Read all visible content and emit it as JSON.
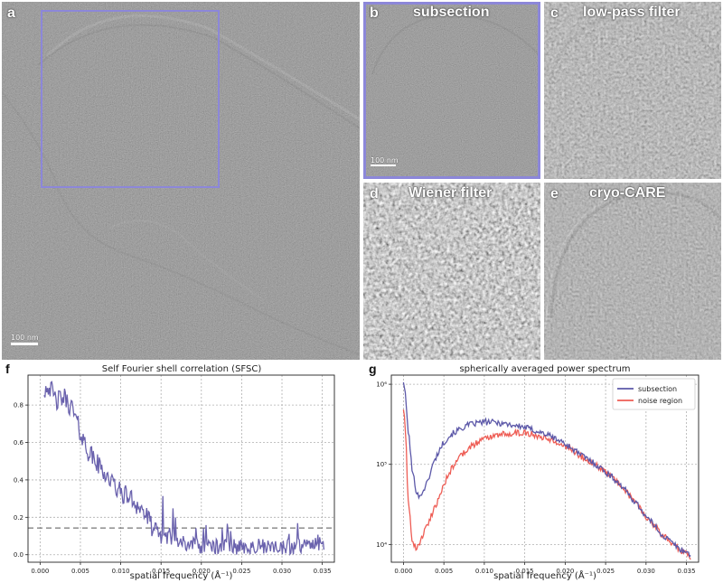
{
  "panels": {
    "a": {
      "label": "a",
      "scale": "100 nm"
    },
    "b": {
      "label": "b",
      "title": "subsection",
      "scale": "100 nm"
    },
    "c": {
      "label": "c",
      "title": "low-pass filter"
    },
    "d": {
      "label": "d",
      "title": "Wiener filter"
    },
    "e": {
      "label": "e",
      "title": "cryo-CARE"
    }
  },
  "colors": {
    "sfsc": "#6a62ad",
    "subsection": "#5c58a8",
    "noise": "#ee5d55",
    "roi": "#8c87d9"
  },
  "chart_data": [
    {
      "panel": "f",
      "type": "line",
      "title": "Self Fourier shell correlation (SFSC)",
      "xlabel": "spatial frequency (Å⁻¹)",
      "ylabel": "",
      "xlim": [
        -0.0015,
        0.0365
      ],
      "ylim": [
        -0.04,
        0.96
      ],
      "xticks": [
        "0.000",
        "0.005",
        "0.010",
        "0.015",
        "0.020",
        "0.025",
        "0.030",
        "0.035"
      ],
      "yticks": [
        "0.0",
        "0.2",
        "0.4",
        "0.6",
        "0.8"
      ],
      "grid": true,
      "threshold": 0.143,
      "x_range": [
        0.0005,
        0.0352
      ],
      "anchors": [
        [
          0.0005,
          0.88
        ],
        [
          0.001,
          0.91
        ],
        [
          0.002,
          0.82
        ],
        [
          0.003,
          0.84
        ],
        [
          0.004,
          0.78
        ],
        [
          0.005,
          0.65
        ],
        [
          0.006,
          0.55
        ],
        [
          0.007,
          0.49
        ],
        [
          0.008,
          0.44
        ],
        [
          0.009,
          0.38
        ],
        [
          0.01,
          0.33
        ],
        [
          0.011,
          0.31
        ],
        [
          0.012,
          0.27
        ],
        [
          0.013,
          0.22
        ],
        [
          0.014,
          0.14
        ],
        [
          0.015,
          0.1
        ],
        [
          0.016,
          0.1
        ],
        [
          0.017,
          0.08
        ],
        [
          0.018,
          0.06
        ],
        [
          0.019,
          0.05
        ],
        [
          0.02,
          0.04
        ],
        [
          0.022,
          0.04
        ],
        [
          0.025,
          0.04
        ],
        [
          0.03,
          0.04
        ],
        [
          0.0352,
          0.05
        ]
      ]
    },
    {
      "panel": "g",
      "type": "line",
      "title": "spherically averaged power spectrum",
      "xlabel": "spatial frequency (Å⁻¹)",
      "ylabel": "",
      "yscale": "log",
      "xlim": [
        -0.0015,
        0.0365
      ],
      "ylim": [
        6000,
        1300000
      ],
      "xticks": [
        "0.000",
        "0.005",
        "0.010",
        "0.015",
        "0.020",
        "0.025",
        "0.030",
        "0.035"
      ],
      "yticks": [
        "10⁴",
        "10⁵",
        "10⁶"
      ],
      "grid": true,
      "legend": "top-right",
      "series": [
        {
          "name": "subsection",
          "anchors": [
            [
              0.0,
              1100000
            ],
            [
              0.0005,
              300000
            ],
            [
              0.001,
              90000
            ],
            [
              0.0015,
              50000
            ],
            [
              0.002,
              38000
            ],
            [
              0.003,
              60000
            ],
            [
              0.004,
              120000
            ],
            [
              0.005,
              190000
            ],
            [
              0.006,
              240000
            ],
            [
              0.008,
              310000
            ],
            [
              0.01,
              340000
            ],
            [
              0.012,
              330000
            ],
            [
              0.015,
              290000
            ],
            [
              0.018,
              230000
            ],
            [
              0.02,
              180000
            ],
            [
              0.022,
              130000
            ],
            [
              0.025,
              80000
            ],
            [
              0.028,
              40000
            ],
            [
              0.03,
              22000
            ],
            [
              0.032,
              13000
            ],
            [
              0.034,
              9000
            ],
            [
              0.0355,
              7500
            ]
          ]
        },
        {
          "name": "noise region",
          "anchors": [
            [
              0.0,
              500000
            ],
            [
              0.0005,
              40000
            ],
            [
              0.001,
              12000
            ],
            [
              0.0015,
              9000
            ],
            [
              0.002,
              10000
            ],
            [
              0.0025,
              14000
            ],
            [
              0.003,
              18000
            ],
            [
              0.004,
              30000
            ],
            [
              0.005,
              55000
            ],
            [
              0.006,
              90000
            ],
            [
              0.008,
              160000
            ],
            [
              0.01,
              210000
            ],
            [
              0.012,
              240000
            ],
            [
              0.015,
              250000
            ],
            [
              0.018,
              210000
            ],
            [
              0.02,
              170000
            ],
            [
              0.022,
              125000
            ],
            [
              0.025,
              80000
            ],
            [
              0.028,
              40000
            ],
            [
              0.03,
              22000
            ],
            [
              0.032,
              13000
            ],
            [
              0.034,
              9000
            ],
            [
              0.0355,
              7000
            ]
          ]
        }
      ]
    }
  ]
}
